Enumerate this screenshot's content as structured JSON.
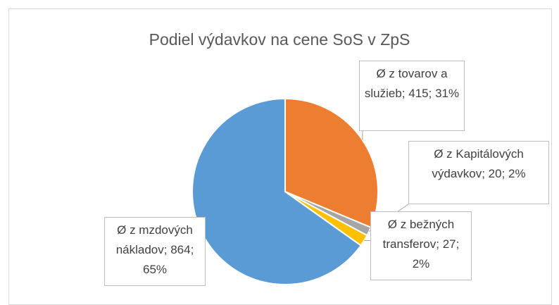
{
  "chart_data": {
    "type": "pie",
    "title": "Podiel výdavkov na cene SoS v ZpS",
    "categories": [
      "Ø z tovarov a služieb",
      "Ø z Kapitálových výdavkov",
      "Ø z bežných transferov",
      "Ø z mzdových nákladov"
    ],
    "values": [
      415,
      20,
      27,
      864
    ],
    "value_labels": [
      "Ø z tovarov a služieb; 415; 31%",
      "Ø z Kapitálových výdavkov; 20; 2%",
      "Ø z bežných transferov; 27; 2%",
      "Ø z mzdových nákladov; 864; 65%"
    ],
    "colors": [
      "#ed7d31",
      "#a5a5a5",
      "#ffc000",
      "#5b9bd5"
    ]
  }
}
